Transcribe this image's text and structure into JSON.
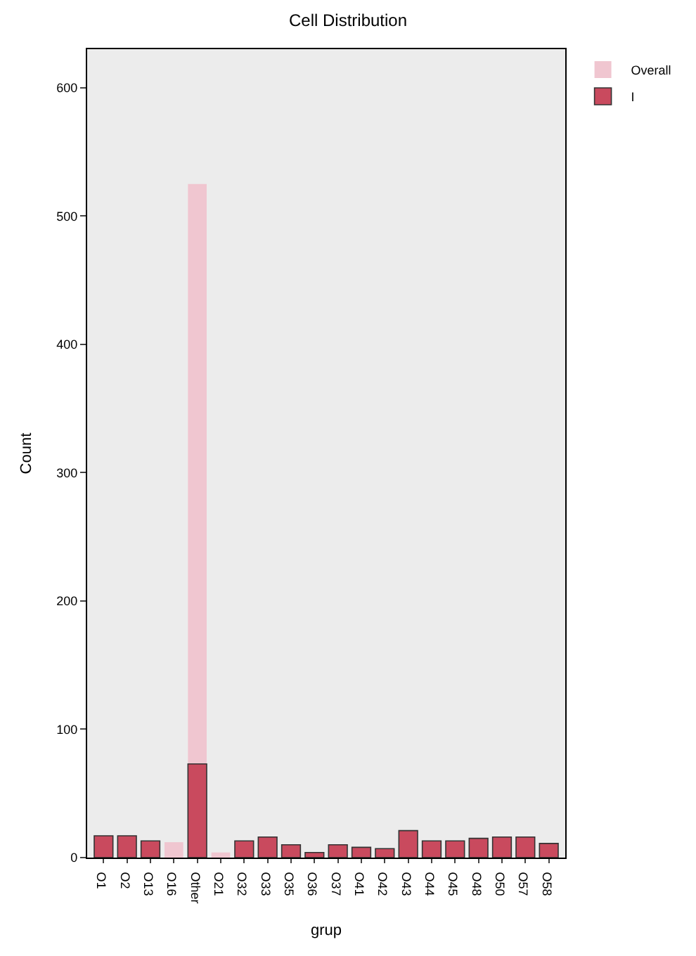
{
  "chart_data": {
    "type": "bar",
    "title": "Cell Distribution",
    "xlabel": "grup",
    "ylabel": "Count",
    "categories": [
      "O1",
      "O2",
      "O13",
      "O16",
      "Other",
      "O21",
      "O32",
      "O33",
      "O35",
      "O36",
      "O37",
      "O41",
      "O42",
      "O43",
      "O44",
      "O45",
      "O48",
      "O50",
      "O57",
      "O58"
    ],
    "series": [
      {
        "name": "Overall",
        "color": "#f0c6d0",
        "values": [
          null,
          null,
          null,
          12,
          525,
          4,
          null,
          null,
          null,
          null,
          null,
          null,
          null,
          null,
          null,
          null,
          null,
          null,
          null,
          null
        ]
      },
      {
        "name": "I",
        "color": "#c94a5e",
        "values": [
          17,
          17,
          13,
          null,
          73,
          null,
          13,
          16,
          10,
          4,
          10,
          8,
          7,
          21,
          13,
          13,
          15,
          16,
          16,
          11
        ]
      }
    ],
    "ylim": [
      0,
      630
    ],
    "yticks": [
      0,
      100,
      200,
      300,
      400,
      500,
      600
    ],
    "grid": false,
    "legend": "top right"
  }
}
